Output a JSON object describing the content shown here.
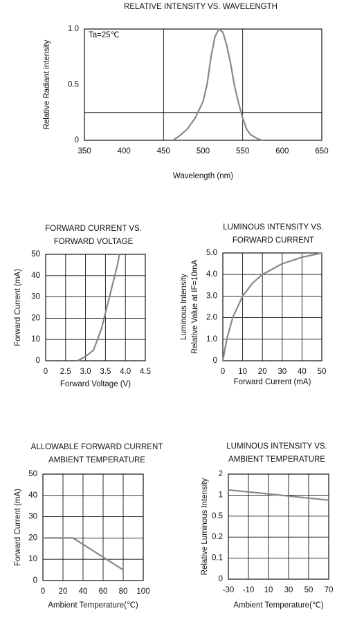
{
  "chart_data": [
    {
      "type": "line",
      "title": "RELATIVE INTENSITY VS. WAVELENGTH",
      "annotation": "Ta=25℃",
      "x_label": "Wavelength (nm)",
      "y_label": "Relative Radiant intensity",
      "x": [
        462,
        470,
        480,
        490,
        500,
        505,
        510,
        515,
        520,
        525,
        530,
        535,
        540,
        545,
        550,
        555,
        560,
        570,
        576
      ],
      "values": [
        0,
        0.04,
        0.1,
        0.2,
        0.35,
        0.5,
        0.75,
        0.93,
        1,
        0.97,
        0.85,
        0.68,
        0.48,
        0.33,
        0.2,
        0.1,
        0.05,
        0.01,
        0
      ],
      "color": "#888888",
      "xlim": [
        350,
        650
      ],
      "xticks": [
        350,
        400,
        450,
        500,
        550,
        600,
        650
      ],
      "ylim": [
        0,
        1
      ],
      "yticks": [
        0,
        0.5,
        {
          "value": 1,
          "label": "1.0"
        }
      ],
      "xgrid": [
        450,
        550
      ],
      "ygrid": [
        0.25
      ]
    },
    {
      "type": "line",
      "title": [
        "FORWARD CURRENT VS.",
        "FORWARD VOLTAGE"
      ],
      "x_label": "Forward Voltage (V)",
      "y_label": "Forward Current (mA)",
      "x": [
        2.8,
        3.0,
        3.2,
        3.4,
        3.6,
        3.8,
        3.85
      ],
      "values": [
        0,
        2,
        5,
        15,
        30,
        45,
        50
      ],
      "color": "#888888",
      "xlim": [
        0,
        4.5
      ],
      "xticks": [
        0,
        2.5,
        {
          "value": 3,
          "label": "3.0"
        },
        3.5,
        {
          "value": 4,
          "label": "4.0"
        },
        4.5
      ],
      "ylim": [
        0,
        50
      ],
      "yticks": [
        0,
        10,
        20,
        30,
        40,
        50
      ],
      "grid": true
    },
    {
      "type": "line",
      "title": [
        "LUMINOUS INTENSITY VS.",
        "FORWARD CURRENT"
      ],
      "x_label": "Forward Current (mA)",
      "y_label": [
        "Luminous Intensity",
        "Relative Value at IF=10mA"
      ],
      "x": [
        0,
        2,
        5,
        10,
        15,
        20,
        30,
        40,
        50
      ],
      "values": [
        0,
        1,
        2,
        3,
        3.6,
        4,
        4.5,
        4.8,
        5
      ],
      "color": "#888888",
      "xlim": [
        0,
        50
      ],
      "xticks": [
        0,
        10,
        20,
        30,
        40,
        50
      ],
      "ylim": [
        0,
        5
      ],
      "yticks": [
        0,
        {
          "value": 1,
          "label": "1.0"
        },
        {
          "value": 2,
          "label": "2.0"
        },
        {
          "value": 3,
          "label": "3.0"
        },
        {
          "value": 4,
          "label": "4.0"
        },
        {
          "value": 5,
          "label": "5.0"
        }
      ],
      "grid": true
    },
    {
      "type": "line",
      "title": [
        "ALLOWABLE FORWARD CURRENT",
        "AMBIENT TEMPERATURE"
      ],
      "x_label": "Ambient Temperature(℃)",
      "y_label": "Forward Current (mA)",
      "x": [
        0,
        30,
        80
      ],
      "values": [
        20,
        20,
        5
      ],
      "color": "#888888",
      "xlim": [
        0,
        100
      ],
      "xticks": [
        0,
        20,
        40,
        60,
        80,
        100
      ],
      "ylim": [
        0,
        50
      ],
      "yticks": [
        0,
        10,
        20,
        30,
        40,
        50
      ],
      "grid": true
    },
    {
      "type": "line",
      "title": [
        "LUMINOUS INTENSITY VS.",
        "AMBIENT TEMPERATURE"
      ],
      "x_label": "Ambient Temperature(℃)",
      "y_label": "Relative Luminous Intensity",
      "x": [
        -30,
        70
      ],
      "values": [
        1.25,
        0.88
      ],
      "color": "#888888",
      "xlim": [
        -30,
        70
      ],
      "xticks": [
        -30,
        -10,
        10,
        30,
        50,
        70
      ],
      "ylim": [
        0,
        2
      ],
      "yticks": [
        0,
        0.1,
        0.2,
        0.5,
        1,
        2
      ],
      "grid": true
    }
  ]
}
